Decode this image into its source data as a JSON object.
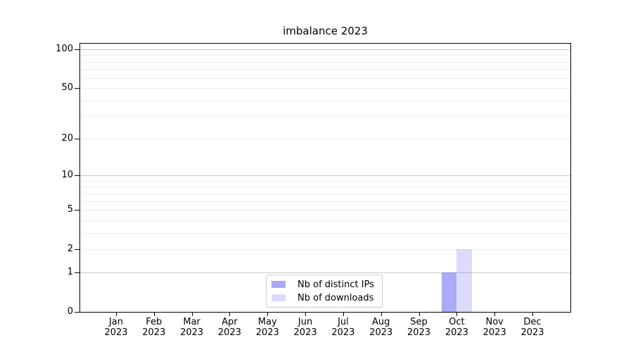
{
  "chart_data": {
    "type": "bar",
    "title": "imbalance 2023",
    "categories": [
      "Jan",
      "Feb",
      "Mar",
      "Apr",
      "May",
      "Jun",
      "Jul",
      "Aug",
      "Sep",
      "Oct",
      "Nov",
      "Dec"
    ],
    "year_label": "2023",
    "series": [
      {
        "name": "Nb of distinct IPs",
        "color": "rgba(85,85,239,0.5)",
        "solid_color": "#aaaaf7",
        "values": [
          0,
          0,
          0,
          0,
          0,
          0,
          0,
          0,
          0,
          1,
          0,
          0
        ]
      },
      {
        "name": "Nb of downloads",
        "color": "rgba(85,85,239,0.21)",
        "solid_color": "#dbdbfa",
        "values": [
          0,
          0,
          0,
          0,
          0,
          0,
          0,
          0,
          0,
          2,
          0,
          0
        ]
      }
    ],
    "y_axis": {
      "scale": "log1p",
      "ticks": [
        0,
        1,
        2,
        5,
        10,
        20,
        50,
        100
      ],
      "major_gridlines": [
        1,
        10,
        100
      ],
      "minor_gridlines": [
        2,
        3,
        4,
        5,
        6,
        7,
        8,
        9,
        20,
        30,
        40,
        50,
        60,
        70,
        80,
        90
      ],
      "ylim": [
        0,
        111
      ]
    },
    "grid": "horizontal",
    "legend": {
      "position": "inside-bottom-center"
    }
  },
  "colors": {
    "major_grid": "#c9c9c9",
    "minor_grid": "#ededed",
    "spine": "#000000",
    "legend_border": "#cccccc"
  }
}
